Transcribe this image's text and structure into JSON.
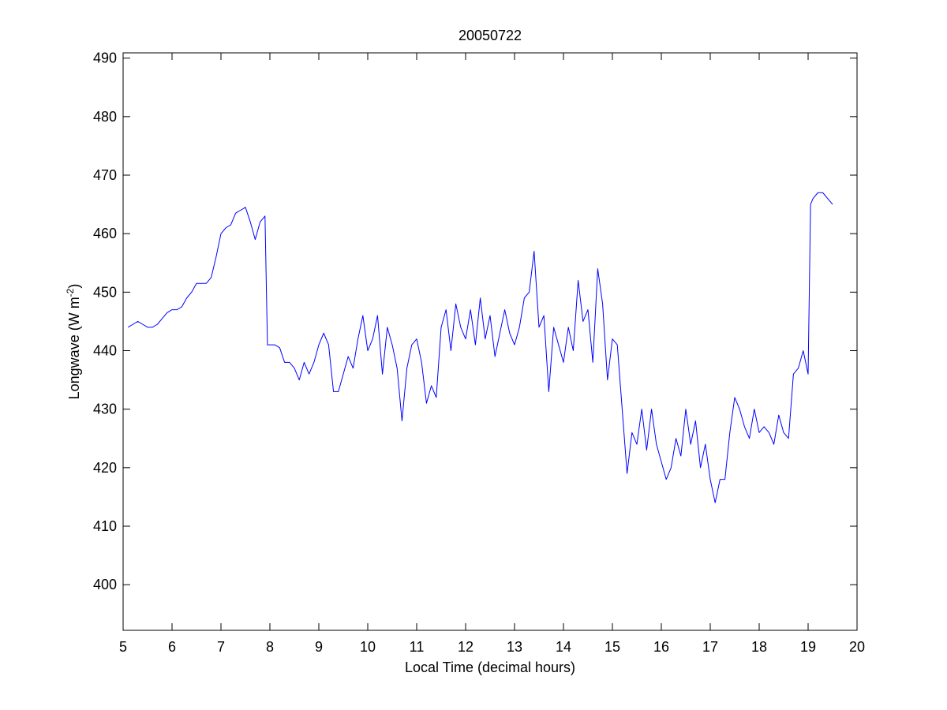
{
  "chart_data": {
    "type": "line",
    "title": "20050722",
    "xlabel": "Local Time (decimal hours)",
    "ylabel": {
      "text": "Longwave (W m",
      "superscript": "-2",
      "suffix": ")"
    },
    "xlim": [
      5,
      20
    ],
    "ylim": [
      392.2,
      490.9
    ],
    "xticks": [
      5,
      6,
      7,
      8,
      9,
      10,
      11,
      12,
      13,
      14,
      15,
      16,
      17,
      18,
      19,
      20
    ],
    "yticks": [
      400,
      410,
      420,
      430,
      440,
      450,
      460,
      470,
      480,
      490
    ],
    "grid": false,
    "series": [
      {
        "color": "#0000ff",
        "x": [
          5.1,
          5.2,
          5.3,
          5.4,
          5.5,
          5.6,
          5.7,
          5.8,
          5.9,
          6.0,
          6.1,
          6.2,
          6.3,
          6.4,
          6.5,
          6.6,
          6.7,
          6.8,
          6.9,
          7.0,
          7.1,
          7.2,
          7.3,
          7.4,
          7.5,
          7.6,
          7.7,
          7.8,
          7.9,
          7.95,
          8.0,
          8.1,
          8.2,
          8.3,
          8.4,
          8.5,
          8.6,
          8.7,
          8.8,
          8.9,
          9.0,
          9.1,
          9.2,
          9.3,
          9.4,
          9.5,
          9.6,
          9.7,
          9.8,
          9.9,
          10.0,
          10.1,
          10.2,
          10.3,
          10.4,
          10.5,
          10.6,
          10.7,
          10.8,
          10.9,
          11.0,
          11.1,
          11.2,
          11.3,
          11.4,
          11.5,
          11.6,
          11.7,
          11.8,
          11.9,
          12.0,
          12.1,
          12.2,
          12.3,
          12.4,
          12.5,
          12.6,
          12.7,
          12.8,
          12.9,
          13.0,
          13.1,
          13.2,
          13.3,
          13.4,
          13.5,
          13.6,
          13.7,
          13.8,
          13.9,
          14.0,
          14.1,
          14.2,
          14.3,
          14.4,
          14.5,
          14.6,
          14.7,
          14.8,
          14.9,
          15.0,
          15.1,
          15.2,
          15.3,
          15.4,
          15.5,
          15.6,
          15.7,
          15.8,
          15.9,
          16.0,
          16.1,
          16.2,
          16.3,
          16.4,
          16.5,
          16.6,
          16.7,
          16.8,
          16.9,
          17.0,
          17.1,
          17.2,
          17.3,
          17.4,
          17.5,
          17.6,
          17.7,
          17.8,
          17.9,
          18.0,
          18.1,
          18.2,
          18.3,
          18.4,
          18.5,
          18.6,
          18.7,
          18.8,
          18.9,
          19.0,
          19.05,
          19.1,
          19.2,
          19.3,
          19.4,
          19.5
        ],
        "values": [
          444,
          444.5,
          445,
          444.5,
          444,
          444,
          444.5,
          445.5,
          446.5,
          447,
          447,
          447.5,
          449,
          450,
          451.5,
          451.5,
          451.5,
          452.5,
          456,
          460,
          461,
          461.5,
          463.5,
          464,
          464.5,
          462,
          459,
          462,
          463,
          441,
          441,
          441,
          440.5,
          438,
          438,
          437,
          435,
          438,
          436,
          438,
          441,
          443,
          441,
          433,
          433,
          436,
          439,
          437,
          442,
          446,
          440,
          442,
          446,
          436,
          444,
          441,
          437,
          428,
          437,
          441,
          442,
          438,
          431,
          434,
          432,
          444,
          447,
          440,
          448,
          444,
          442,
          447,
          441,
          449,
          442,
          446,
          439,
          443,
          447,
          443,
          441,
          444,
          449,
          450,
          457,
          444,
          446,
          433,
          444,
          441,
          438,
          444,
          440,
          452,
          445,
          447,
          438,
          454,
          448,
          435,
          442,
          441,
          430,
          419,
          426,
          424,
          430,
          423,
          430,
          424,
          421,
          418,
          420,
          425,
          422,
          430,
          424,
          428,
          420,
          424,
          418,
          414,
          418,
          418,
          426,
          432,
          430,
          427,
          425,
          430,
          426,
          427,
          426,
          424,
          429,
          426,
          425,
          436,
          437,
          440,
          436,
          465,
          466,
          467,
          467,
          466,
          465
        ]
      }
    ]
  }
}
